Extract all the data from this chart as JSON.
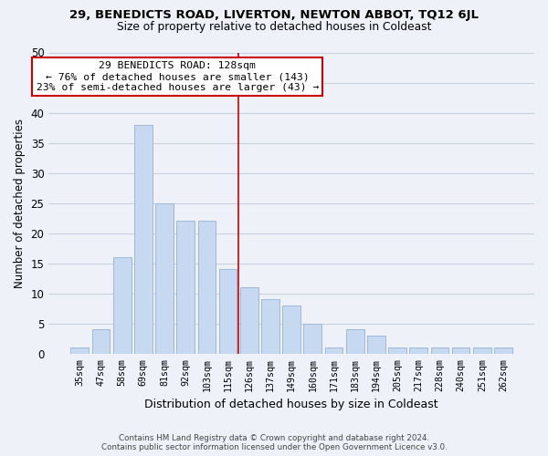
{
  "title": "29, BENEDICTS ROAD, LIVERTON, NEWTON ABBOT, TQ12 6JL",
  "subtitle": "Size of property relative to detached houses in Coldeast",
  "xlabel": "Distribution of detached houses by size in Coldeast",
  "ylabel": "Number of detached properties",
  "bar_labels": [
    "35sqm",
    "47sqm",
    "58sqm",
    "69sqm",
    "81sqm",
    "92sqm",
    "103sqm",
    "115sqm",
    "126sqm",
    "137sqm",
    "149sqm",
    "160sqm",
    "171sqm",
    "183sqm",
    "194sqm",
    "205sqm",
    "217sqm",
    "228sqm",
    "240sqm",
    "251sqm",
    "262sqm"
  ],
  "bar_heights": [
    1,
    4,
    16,
    38,
    25,
    22,
    22,
    14,
    11,
    9,
    8,
    5,
    1,
    4,
    3,
    1,
    1,
    1,
    1,
    1,
    1
  ],
  "bar_color": "#c6d9f0",
  "bar_edge_color": "#a0b8d8",
  "grid_color": "#c8d0de",
  "vline_color": "#cc0000",
  "annotation_line0": "29 BENEDICTS ROAD: 128sqm",
  "annotation_line1": "← 76% of detached houses are smaller (143)",
  "annotation_line2": "23% of semi-detached houses are larger (43) →",
  "annotation_box_color": "#ffffff",
  "annotation_box_edge": "#cc0000",
  "ylim": [
    0,
    50
  ],
  "yticks": [
    0,
    5,
    10,
    15,
    20,
    25,
    30,
    35,
    40,
    45,
    50
  ],
  "footer_line1": "Contains HM Land Registry data © Crown copyright and database right 2024.",
  "footer_line2": "Contains public sector information licensed under the Open Government Licence v3.0.",
  "background_color": "#eef2f8"
}
